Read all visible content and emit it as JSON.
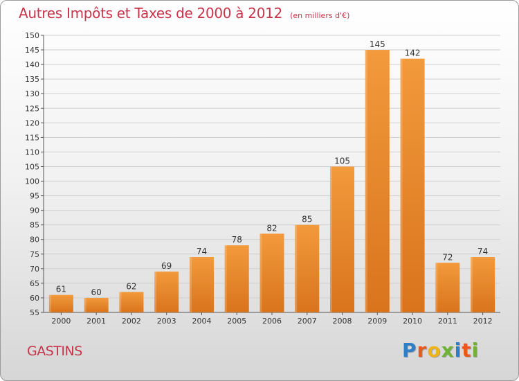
{
  "chart_data": {
    "type": "bar",
    "title": "Autres Impôts et Taxes de 2000 à 2012",
    "subtitle": "(en milliers d'€)",
    "categories": [
      "2000",
      "2001",
      "2002",
      "2003",
      "2004",
      "2005",
      "2006",
      "2007",
      "2008",
      "2009",
      "2010",
      "2011",
      "2012"
    ],
    "values": [
      61,
      60,
      62,
      69,
      74,
      78,
      82,
      85,
      105,
      145,
      142,
      72,
      74
    ],
    "ylim": [
      55,
      150
    ],
    "yticks": [
      55,
      60,
      65,
      70,
      75,
      80,
      85,
      90,
      95,
      100,
      105,
      110,
      115,
      120,
      125,
      130,
      135,
      140,
      145,
      150
    ],
    "grid": true,
    "bar_color": "#f29a3c",
    "bar_color_dark": "#d9741c"
  },
  "footer": {
    "town": "GASTINS",
    "logo_letters": [
      {
        "ch": "P",
        "color": "#2e7fc9"
      },
      {
        "ch": "r",
        "color": "#e8591c"
      },
      {
        "ch": "o",
        "color": "#f0b31b"
      },
      {
        "ch": "x",
        "color": "#6fb236"
      },
      {
        "ch": "i",
        "color": "#2e7fc9"
      },
      {
        "ch": "t",
        "color": "#e8591c"
      },
      {
        "ch": "i",
        "color": "#6fb236"
      }
    ]
  }
}
